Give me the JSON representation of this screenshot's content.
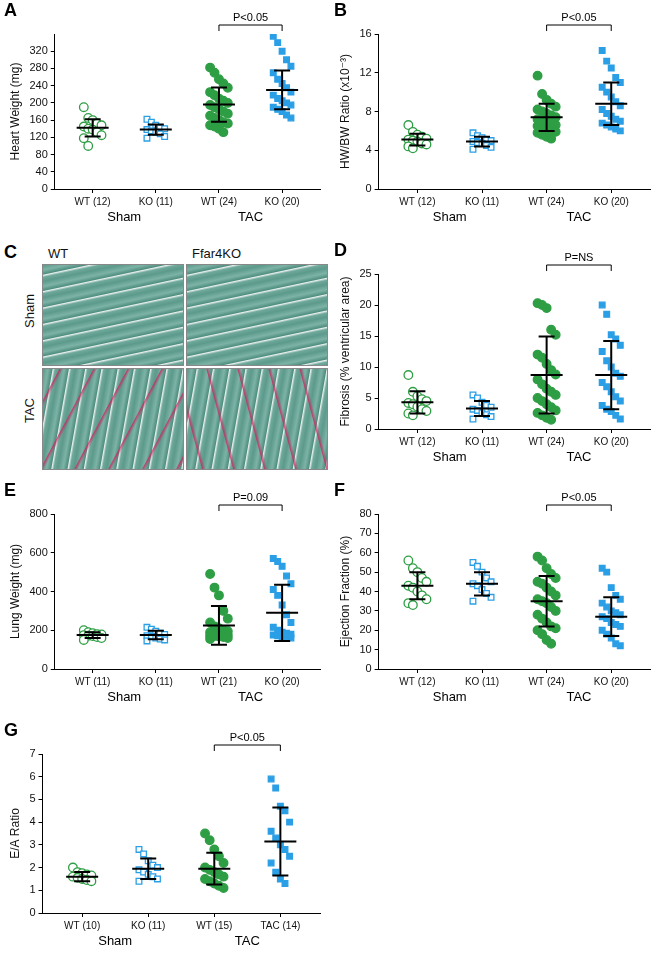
{
  "chart_data": [
    {
      "type": "scatter",
      "panel": "A",
      "y_label": "Heart Weight (mg)",
      "categories": [
        "WT (12)",
        "KO (11)",
        "WT (24)",
        "KO (20)"
      ],
      "groups": [
        "Sham",
        "TAC"
      ],
      "colors": [
        "#2e9e44",
        "#2b9fe6",
        "#2e9e44",
        "#2b9fe6"
      ],
      "markers": [
        "circle-open",
        "square-open",
        "circle",
        "square"
      ],
      "points": [
        [
          190,
          165,
          160,
          152,
          148,
          145,
          140,
          138,
          132,
          125,
          118,
          100
        ],
        [
          162,
          155,
          148,
          142,
          140,
          138,
          135,
          132,
          128,
          122,
          118
        ],
        [
          282,
          270,
          255,
          245,
          235,
          225,
          218,
          210,
          205,
          200,
          195,
          190,
          185,
          180,
          175,
          170,
          165,
          160,
          155,
          152,
          148,
          145,
          140,
          132
        ],
        [
          355,
          340,
          320,
          300,
          285,
          270,
          255,
          245,
          235,
          225,
          218,
          210,
          205,
          200,
          195,
          190,
          185,
          180,
          172,
          165
        ]
      ],
      "mean": [
        142,
        138,
        196,
        230
      ],
      "sd": [
        20,
        12,
        40,
        45
      ],
      "ylim": [
        0,
        360
      ],
      "yticks": [
        0,
        40,
        80,
        120,
        160,
        200,
        240,
        280,
        320
      ],
      "annotation": {
        "text": "P<0.05",
        "from": "WT (24)",
        "to": "KO (20)"
      }
    },
    {
      "type": "scatter",
      "panel": "B",
      "y_label": "HW/BW Ratio (x10⁻³)",
      "categories": [
        "WT (12)",
        "KO (11)",
        "WT (24)",
        "KO (20)"
      ],
      "groups": [
        "Sham",
        "TAC"
      ],
      "colors": [
        "#2e9e44",
        "#2b9fe6",
        "#2e9e44",
        "#2b9fe6"
      ],
      "markers": [
        "circle-open",
        "square-open",
        "circle",
        "square"
      ],
      "points": [
        [
          6.6,
          5.9,
          5.6,
          5.4,
          5.2,
          5.1,
          5.0,
          4.9,
          4.7,
          4.6,
          4.4,
          4.2
        ],
        [
          5.8,
          5.5,
          5.3,
          5.1,
          5.0,
          4.9,
          4.8,
          4.7,
          4.5,
          4.3,
          4.1
        ],
        [
          11.7,
          9.8,
          9.2,
          8.8,
          8.5,
          8.2,
          8.0,
          7.8,
          7.6,
          7.4,
          7.2,
          7.0,
          6.9,
          6.8,
          6.6,
          6.5,
          6.3,
          6.2,
          6.0,
          5.9,
          5.8,
          5.6,
          5.4,
          5.2
        ],
        [
          14.3,
          13.2,
          12.5,
          11.5,
          11.0,
          10.5,
          10.0,
          9.5,
          9.0,
          8.6,
          8.2,
          7.8,
          7.5,
          7.2,
          7.0,
          6.8,
          6.6,
          6.4,
          6.2,
          6.0
        ]
      ],
      "mean": [
        5.1,
        4.9,
        7.4,
        8.8
      ],
      "sd": [
        0.6,
        0.5,
        1.4,
        2.2
      ],
      "ylim": [
        0,
        16
      ],
      "yticks": [
        0,
        4,
        8,
        12,
        16
      ],
      "annotation": {
        "text": "P<0.05",
        "from": "WT (24)",
        "to": "KO (20)"
      }
    },
    {
      "type": "scatter",
      "panel": "D",
      "y_label": "Fibrosis (% ventricular area)",
      "categories": [
        "WT (12)",
        "KO (11)",
        "WT (24)",
        "KO (20)"
      ],
      "groups": [
        "Sham",
        "TAC"
      ],
      "colors": [
        "#2e9e44",
        "#2b9fe6",
        "#2e9e44",
        "#2b9fe6"
      ],
      "markers": [
        "circle-open",
        "square-open",
        "circle",
        "square"
      ],
      "points": [
        [
          8.7,
          6.0,
          5.3,
          4.8,
          4.5,
          4.2,
          4.0,
          3.6,
          3.2,
          2.9,
          2.5,
          2.2
        ],
        [
          5.5,
          5.0,
          4.3,
          3.8,
          3.5,
          3.2,
          3.0,
          2.6,
          2.3,
          2.0,
          1.6
        ],
        [
          20.3,
          20.0,
          19.5,
          16.0,
          15.2,
          12.0,
          11.5,
          10.5,
          9.5,
          8.8,
          8.0,
          7.2,
          6.5,
          6.0,
          5.5,
          5.0,
          4.5,
          4.0,
          3.5,
          3.0,
          2.6,
          2.2,
          1.8,
          1.5
        ],
        [
          20.0,
          18.5,
          15.2,
          14.5,
          13.5,
          12.5,
          11.0,
          10.0,
          9.0,
          8.5,
          7.5,
          6.8,
          6.0,
          5.2,
          4.5,
          3.8,
          3.2,
          2.8,
          2.2,
          1.6
        ]
      ],
      "mean": [
        4.3,
        3.3,
        8.7,
        8.7
      ],
      "sd": [
        1.8,
        1.2,
        6.2,
        5.5
      ],
      "ylim": [
        0,
        25
      ],
      "yticks": [
        0,
        5,
        10,
        15,
        20,
        25
      ],
      "annotation": {
        "text": "P=NS",
        "from": "WT (24)",
        "to": "KO (20)"
      }
    },
    {
      "type": "scatter",
      "panel": "E",
      "y_label": "Lung Weight (mg)",
      "categories": [
        "WT (11)",
        "KO (11)",
        "WT (21)",
        "KO (20)"
      ],
      "groups": [
        "Sham",
        "TAC"
      ],
      "colors": [
        "#2e9e44",
        "#2b9fe6",
        "#2e9e44",
        "#2b9fe6"
      ],
      "markers": [
        "circle-open",
        "square-open",
        "circle",
        "square"
      ],
      "points": [
        [
          200,
          190,
          185,
          180,
          178,
          175,
          172,
          170,
          165,
          160,
          150
        ],
        [
          215,
          205,
          195,
          185,
          178,
          172,
          168,
          160,
          155,
          150,
          145
        ],
        [
          490,
          420,
          380,
          300,
          260,
          240,
          220,
          210,
          200,
          195,
          190,
          185,
          180,
          178,
          175,
          172,
          170,
          168,
          165,
          160,
          155
        ],
        [
          570,
          555,
          530,
          480,
          440,
          410,
          380,
          330,
          280,
          240,
          215,
          200,
          190,
          185,
          180,
          175,
          172,
          168,
          165,
          160
        ]
      ],
      "mean": [
        175,
        175,
        225,
        290
      ],
      "sd": [
        15,
        22,
        100,
        145
      ],
      "ylim": [
        0,
        800
      ],
      "yticks": [
        0,
        200,
        400,
        600,
        800
      ],
      "annotation": {
        "text": "P=0.09",
        "from": "WT (21)",
        "to": "KO (20)"
      }
    },
    {
      "type": "scatter",
      "panel": "F",
      "y_label": "Ejection Fraction (%)",
      "categories": [
        "WT (12)",
        "KO (11)",
        "WT (24)",
        "KO (20)"
      ],
      "groups": [
        "Sham",
        "TAC"
      ],
      "colors": [
        "#2e9e44",
        "#2b9fe6",
        "#2e9e44",
        "#2b9fe6"
      ],
      "markers": [
        "circle-open",
        "square-open",
        "circle",
        "square"
      ],
      "points": [
        [
          56,
          52,
          50,
          47,
          45,
          43,
          42,
          40,
          38,
          36,
          34,
          33
        ],
        [
          55,
          53,
          50,
          47,
          45,
          44,
          43,
          41,
          39,
          37,
          35
        ],
        [
          58,
          56,
          52,
          49,
          47,
          45,
          44,
          42,
          40,
          38,
          36,
          35,
          34,
          32,
          30,
          28,
          26,
          24,
          22,
          21,
          20,
          18,
          15,
          13
        ],
        [
          52,
          50,
          42,
          38,
          36,
          34,
          32,
          30,
          29,
          28,
          27,
          26,
          24,
          23,
          22,
          20,
          18,
          16,
          13,
          12
        ]
      ],
      "mean": [
        43,
        44,
        35,
        27
      ],
      "sd": [
        7,
        6,
        13,
        10
      ],
      "ylim": [
        0,
        80
      ],
      "yticks": [
        0,
        10,
        20,
        30,
        40,
        50,
        60,
        70,
        80
      ],
      "annotation": {
        "text": "P<0.05",
        "from": "WT (24)",
        "to": "KO (20)"
      }
    },
    {
      "type": "scatter",
      "panel": "G",
      "y_label": "E/A Ratio",
      "categories": [
        "WT (10)",
        "KO (11)",
        "WT (15)",
        "TAC (14)"
      ],
      "groups": [
        "Sham",
        "TAC"
      ],
      "colors": [
        "#2e9e44",
        "#2b9fe6",
        "#2e9e44",
        "#2b9fe6"
      ],
      "markers": [
        "circle-open",
        "square-open",
        "circle",
        "square"
      ],
      "points": [
        [
          2.0,
          1.8,
          1.75,
          1.7,
          1.65,
          1.6,
          1.55,
          1.5,
          1.45,
          1.4
        ],
        [
          2.8,
          2.6,
          2.3,
          2.1,
          2.0,
          1.9,
          1.8,
          1.7,
          1.6,
          1.5,
          1.4
        ],
        [
          3.5,
          3.2,
          2.8,
          2.5,
          2.2,
          2.0,
          1.9,
          1.8,
          1.7,
          1.6,
          1.5,
          1.4,
          1.3,
          1.2,
          1.1
        ],
        [
          5.9,
          5.5,
          4.7,
          4.5,
          4.0,
          3.6,
          3.3,
          3.0,
          2.8,
          2.5,
          2.2,
          1.8,
          1.5,
          1.3
        ]
      ],
      "mean": [
        1.6,
        1.95,
        1.95,
        3.15
      ],
      "sd": [
        0.2,
        0.45,
        0.7,
        1.5
      ],
      "ylim": [
        0,
        7
      ],
      "yticks": [
        0,
        1,
        2,
        3,
        4,
        5,
        6,
        7
      ],
      "annotation": {
        "text": "P<0.05",
        "from": "WT (15)",
        "to": "TAC (14)"
      }
    }
  ],
  "image_panel": {
    "panel": "C",
    "columns": [
      "WT",
      "Ffar4KO"
    ],
    "rows": [
      "Sham",
      "TAC"
    ]
  }
}
